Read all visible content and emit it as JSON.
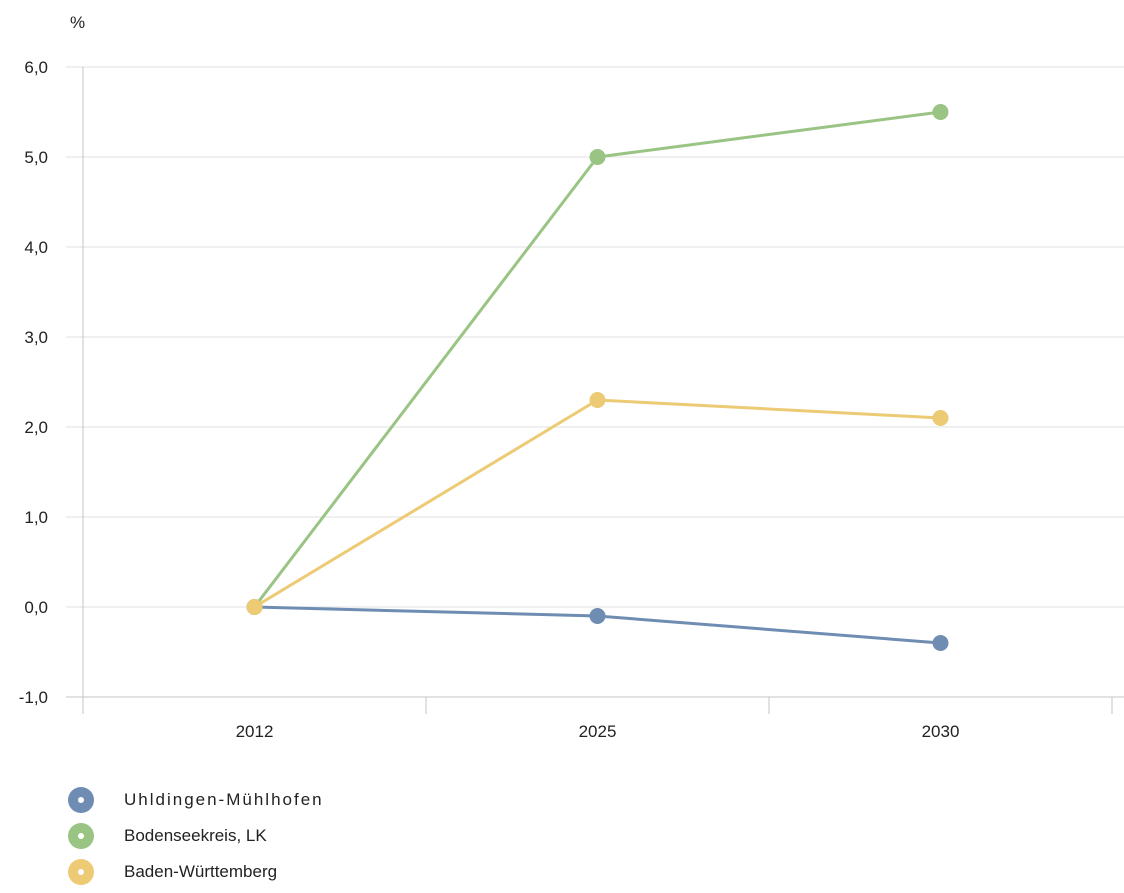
{
  "chart_data": {
    "type": "line",
    "unit_label": "%",
    "categories": [
      "2012",
      "2025",
      "2030"
    ],
    "ylim": [
      -1.0,
      6.0
    ],
    "y_ticks": [
      "-1,0",
      "0,0",
      "1,0",
      "2,0",
      "3,0",
      "4,0",
      "5,0",
      "6,0"
    ],
    "y_tick_values": [
      -1,
      0,
      1,
      2,
      3,
      4,
      5,
      6
    ],
    "grid": true,
    "legend_position": "bottom-left",
    "series": [
      {
        "name": "Uhldingen-Mühlhofen",
        "color": "#6f8db2",
        "values": [
          0.0,
          -0.1,
          -0.4
        ]
      },
      {
        "name": "Bodenseekreis, LK",
        "color": "#99c484",
        "values": [
          0.0,
          5.0,
          5.5
        ]
      },
      {
        "name": "Baden-Württemberg",
        "color": "#edca74",
        "values": [
          0.0,
          2.3,
          2.1
        ]
      }
    ]
  }
}
